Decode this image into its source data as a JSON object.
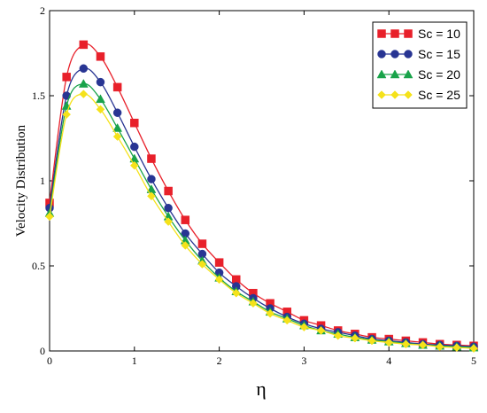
{
  "chart_data": {
    "type": "line",
    "xlabel": "η",
    "ylabel": "Velocity Distribution",
    "xlim": [
      0,
      5
    ],
    "ylim": [
      0,
      2
    ],
    "x_ticks": [
      "0",
      "1",
      "2",
      "3",
      "4",
      "5"
    ],
    "y_ticks": [
      "0",
      "0.5",
      "1",
      "1.5",
      "2"
    ],
    "grid": false,
    "legend_position": "top-right",
    "x": [
      0,
      0.2,
      0.4,
      0.6,
      0.8,
      1.0,
      1.2,
      1.4,
      1.6,
      1.8,
      2.0,
      2.2,
      2.4,
      2.6,
      2.8,
      3.0,
      3.2,
      3.4,
      3.6,
      3.8,
      4.0,
      4.2,
      4.4,
      4.6,
      4.8,
      5.0
    ],
    "series": [
      {
        "name": "Sc = 10",
        "color": "#e8202a",
        "marker": "square",
        "values": [
          0.87,
          1.61,
          1.8,
          1.73,
          1.55,
          1.34,
          1.13,
          0.94,
          0.77,
          0.63,
          0.52,
          0.42,
          0.34,
          0.28,
          0.23,
          0.18,
          0.15,
          0.12,
          0.1,
          0.08,
          0.07,
          0.06,
          0.05,
          0.04,
          0.035,
          0.03
        ]
      },
      {
        "name": "Sc = 15",
        "color": "#283593",
        "marker": "circle",
        "values": [
          0.84,
          1.5,
          1.66,
          1.58,
          1.4,
          1.2,
          1.01,
          0.84,
          0.69,
          0.57,
          0.46,
          0.38,
          0.31,
          0.25,
          0.2,
          0.16,
          0.13,
          0.11,
          0.09,
          0.07,
          0.06,
          0.05,
          0.04,
          0.035,
          0.03,
          0.025
        ]
      },
      {
        "name": "Sc = 20",
        "color": "#19a34a",
        "marker": "triangle",
        "values": [
          0.81,
          1.44,
          1.57,
          1.48,
          1.31,
          1.13,
          0.95,
          0.79,
          0.65,
          0.53,
          0.43,
          0.35,
          0.29,
          0.23,
          0.19,
          0.15,
          0.12,
          0.1,
          0.08,
          0.065,
          0.055,
          0.045,
          0.035,
          0.03,
          0.025,
          0.02
        ]
      },
      {
        "name": "Sc = 25",
        "color": "#f5e21a",
        "marker": "diamond",
        "values": [
          0.79,
          1.39,
          1.51,
          1.42,
          1.26,
          1.09,
          0.91,
          0.76,
          0.62,
          0.51,
          0.42,
          0.34,
          0.28,
          0.22,
          0.18,
          0.14,
          0.12,
          0.09,
          0.075,
          0.06,
          0.05,
          0.04,
          0.035,
          0.025,
          0.02,
          0.015
        ]
      }
    ]
  }
}
